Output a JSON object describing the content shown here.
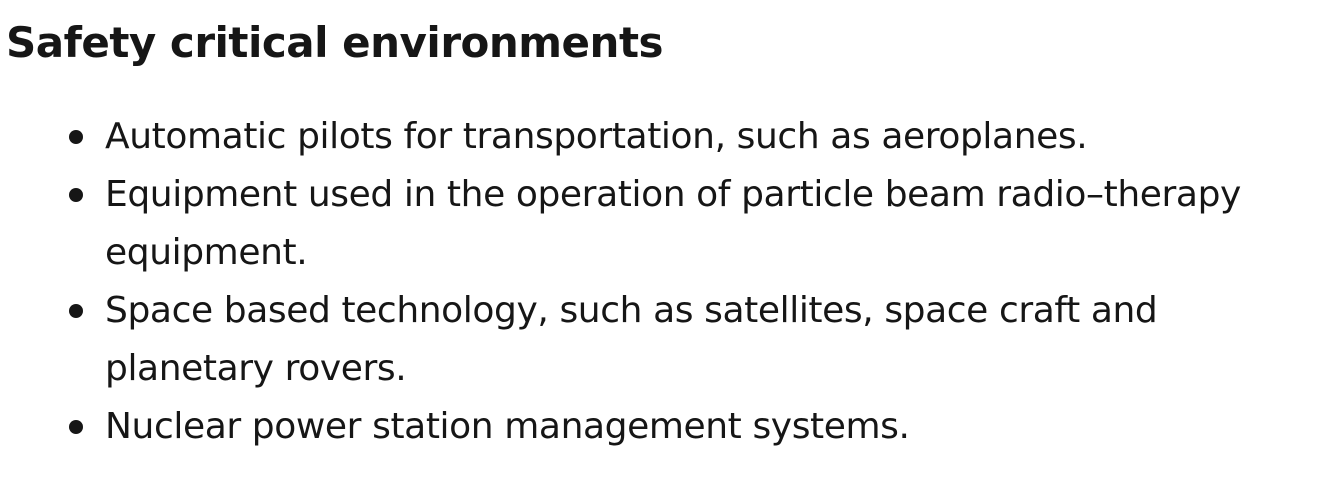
{
  "heading": "Safety critical environments",
  "bullets": [
    {
      "text": "Automatic pilots for transportation, such as aeroplanes."
    },
    {
      "text": "Equipment used in the operation of particle beam radio–therapy\nequipment."
    },
    {
      "text": "Space based technology, such as satellites, space craft and\nplanetary rovers."
    },
    {
      "text": "Nuclear power station management systems."
    }
  ]
}
